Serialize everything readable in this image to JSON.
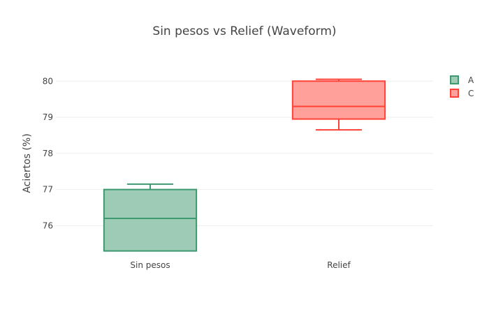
{
  "chart_data": {
    "type": "box",
    "title": "Sin pesos vs Relief (Waveform)",
    "xlabel": "",
    "ylabel": "Aciertos (%)",
    "categories": [
      "Sin pesos",
      "Relief"
    ],
    "ylim": [
      75.1,
      80.7
    ],
    "yticks": [
      76,
      77,
      78,
      79,
      80
    ],
    "grid": true,
    "legend_position": "top-right",
    "series": [
      {
        "name": "A",
        "category": "Sin pesos",
        "color": "#3d9970",
        "fill": "#9ecbb5",
        "whisker_low": 75.3,
        "q1": 75.3,
        "median": 76.2,
        "q3": 77.0,
        "whisker_high": 77.15
      },
      {
        "name": "C",
        "category": "Relief",
        "color": "#ff4136",
        "fill": "#ffa09b",
        "whisker_low": 78.65,
        "q1": 78.95,
        "median": 79.3,
        "q3": 80.0,
        "whisker_high": 80.05
      }
    ]
  }
}
